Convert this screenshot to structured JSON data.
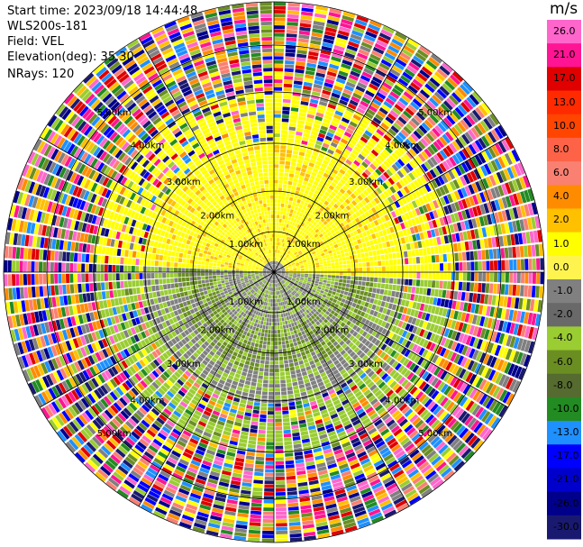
{
  "info": {
    "start_time": "Start time: 2023/09/18 14:44:48",
    "instrument": "WLS200s-181",
    "field": "Field: VEL",
    "elevation": "Elevation(deg): 35.30",
    "nrays": "NRays: 120"
  },
  "colorbar": {
    "unit": "m/s",
    "ticks": [
      "26.0",
      "21.0",
      "17.0",
      "13.0",
      "10.0",
      "8.0",
      "6.0",
      "4.0",
      "2.0",
      "1.0",
      "0.0",
      "-1.0",
      "-2.0",
      "-4.0",
      "-6.0",
      "-8.0",
      "-10.0",
      "-13.0",
      "-17.0",
      "-21.0",
      "-26.0",
      "-30.0"
    ],
    "colors": [
      "#ff66cc",
      "#ff1493",
      "#e00000",
      "#ff2a00",
      "#ff4500",
      "#ff6347",
      "#fa8072",
      "#ff8c00",
      "#ffc000",
      "#ffff00",
      "#fff44f",
      "#808080",
      "#696969",
      "#9acd32",
      "#6b8e23",
      "#556b2f",
      "#228b22",
      "#1e90ff",
      "#0000ff",
      "#0000cd",
      "#00008b",
      "#191970"
    ]
  },
  "range_rings": [
    {
      "label": "1.00km",
      "km": 1
    },
    {
      "label": "2.00km",
      "km": 2
    },
    {
      "label": "3.00km",
      "km": 3
    },
    {
      "label": "4.00km",
      "km": 4
    },
    {
      "label": "5.00km",
      "km": 5
    }
  ]
}
